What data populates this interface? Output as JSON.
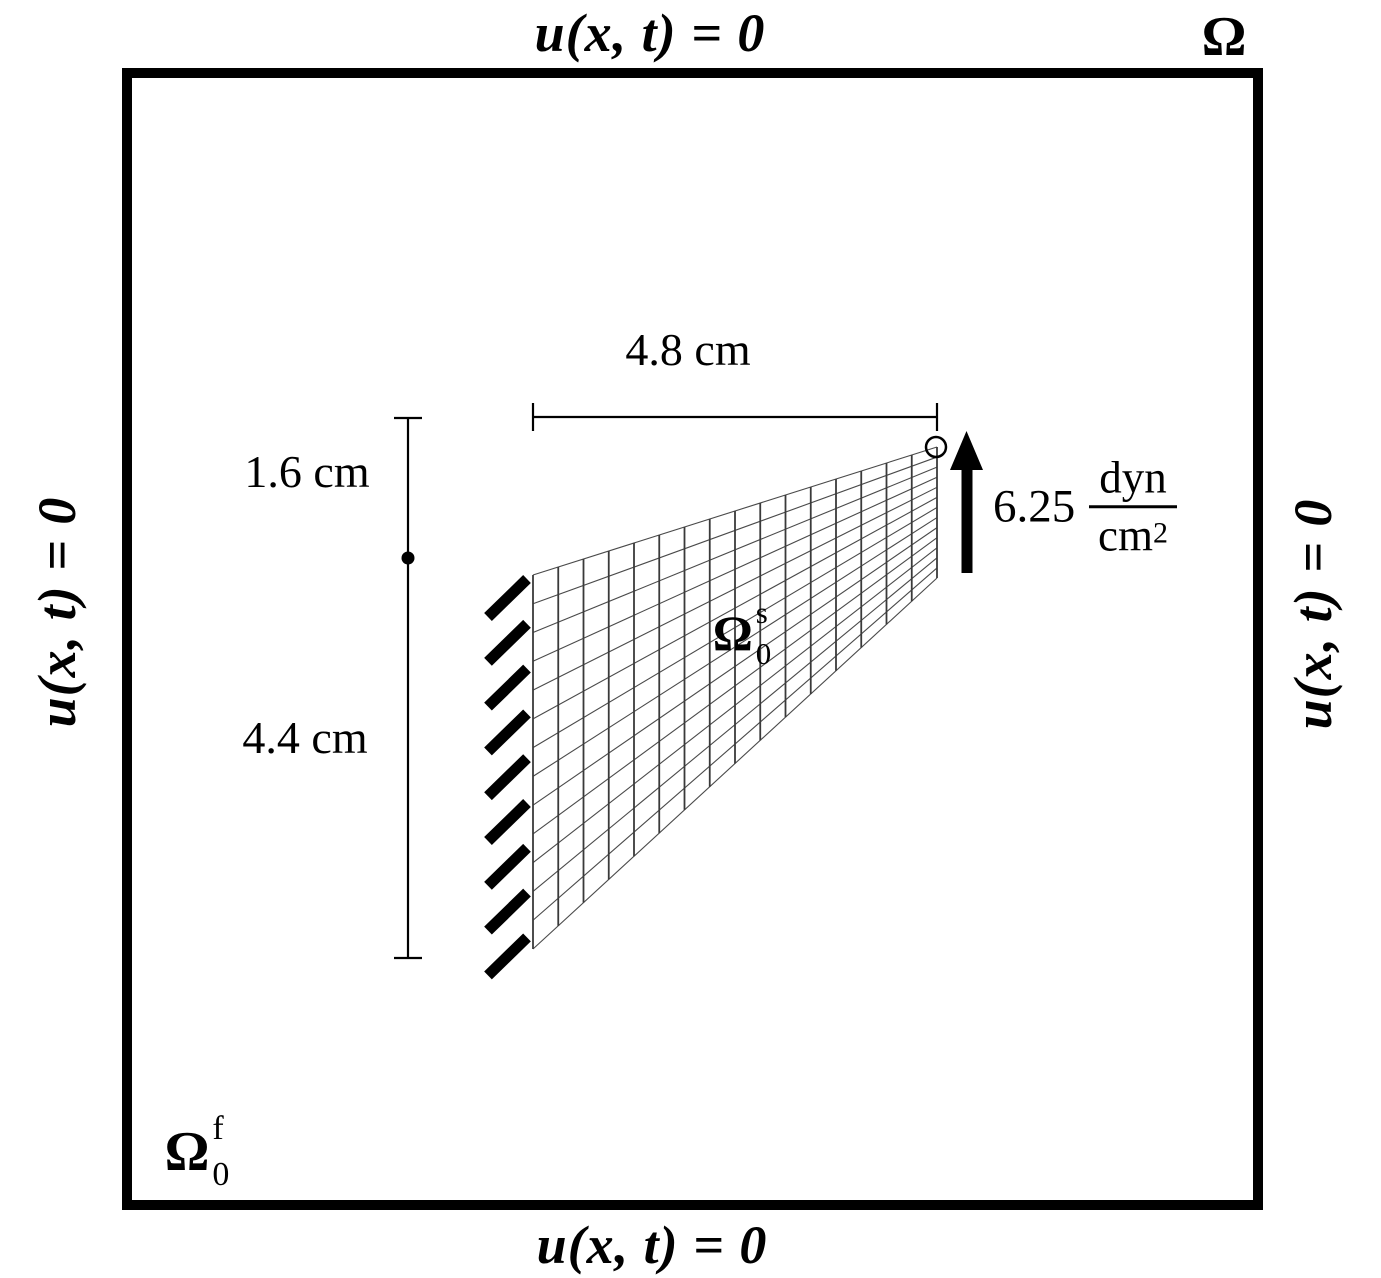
{
  "figure": {
    "boundary_condition": "u(x, t) = 0",
    "domain_label": "Ω",
    "fluid_domain_label": {
      "base": "Ω",
      "sub": "0",
      "sup": "f"
    },
    "solid_domain_label": {
      "base": "Ω",
      "sub": "0",
      "sup": "s"
    },
    "dimensions": {
      "width": "4.8 cm",
      "upper_height": "1.6 cm",
      "lower_height": "4.4 cm"
    },
    "load": {
      "value": "6.25",
      "unit_numerator": "dyn",
      "unit_denominator_base": "cm",
      "unit_denominator_exponent": "2"
    }
  }
}
